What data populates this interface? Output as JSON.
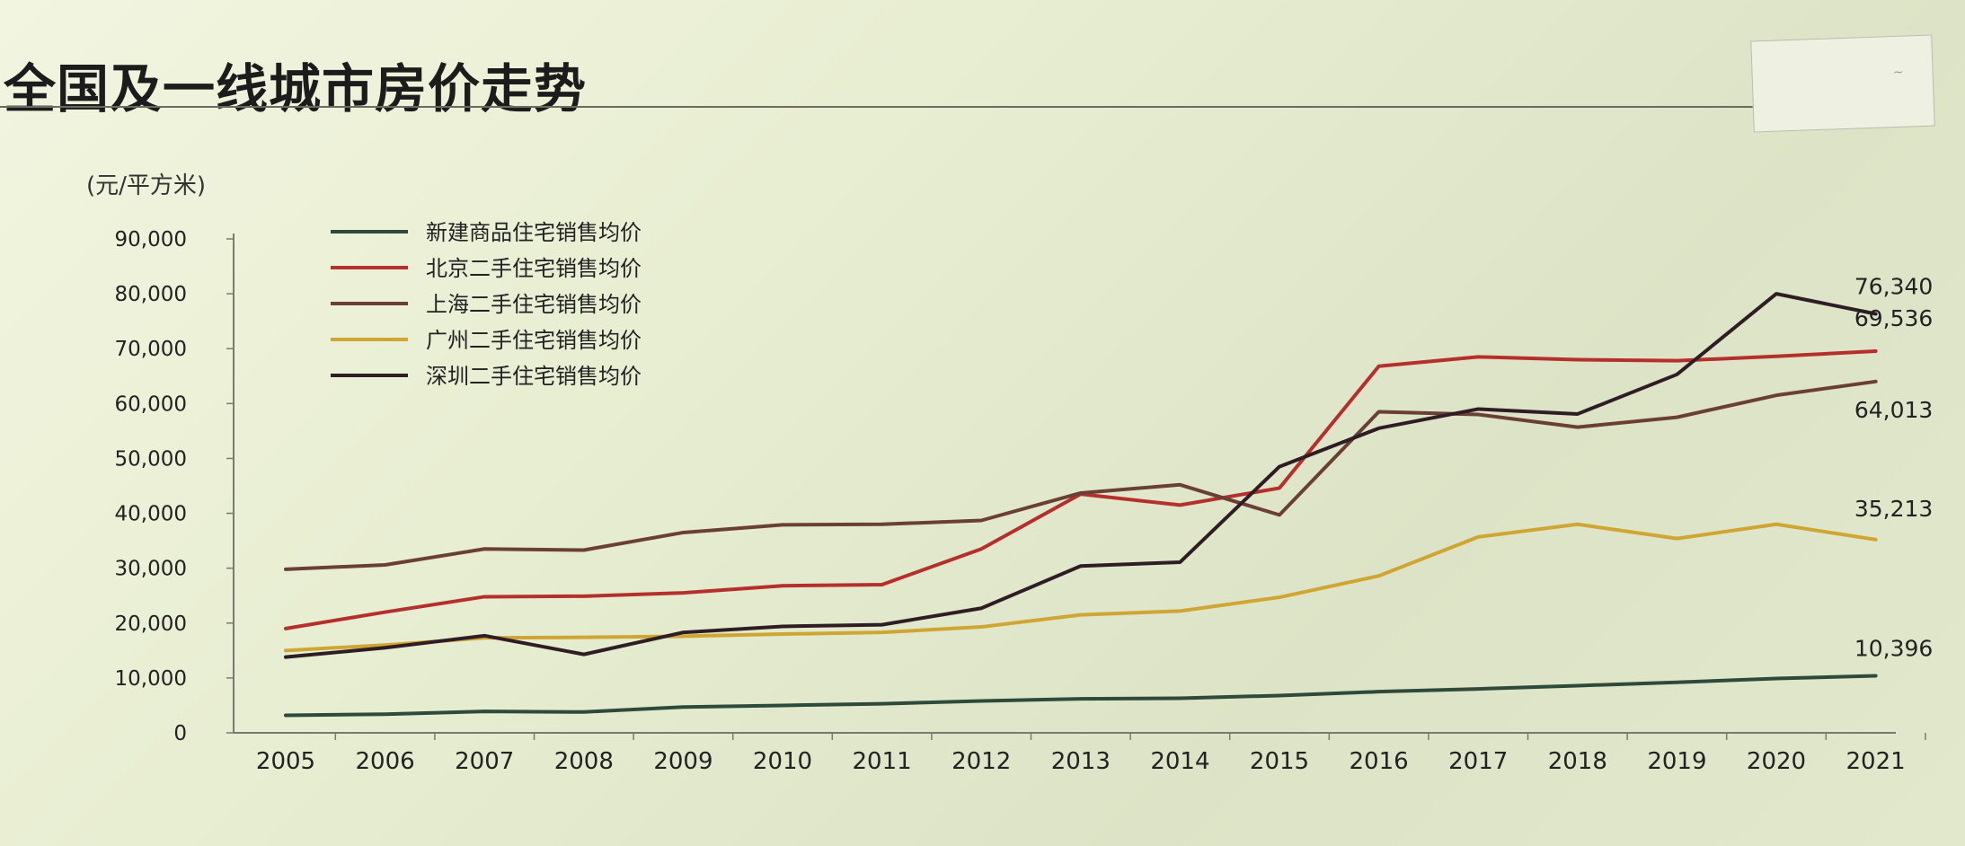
{
  "page": {
    "title": "全国及一线城市房价走势",
    "unit_label": "(元/平方米)"
  },
  "chart_data": {
    "type": "line",
    "title": "全国及一线城市房价走势",
    "ylabel": "(元/平方米)",
    "ylim": [
      0,
      90000
    ],
    "yticks": [
      0,
      10000,
      20000,
      30000,
      40000,
      50000,
      60000,
      70000,
      80000,
      90000
    ],
    "ytick_labels": [
      "0",
      "10,000",
      "20,000",
      "30,000",
      "40,000",
      "50,000",
      "60,000",
      "70,000",
      "80,000",
      "90,000"
    ],
    "categories": [
      "2005",
      "2006",
      "2007",
      "2008",
      "2009",
      "2010",
      "2011",
      "2012",
      "2013",
      "2014",
      "2015",
      "2016",
      "2017",
      "2018",
      "2019",
      "2020",
      "2021"
    ],
    "legend_position": "top-left",
    "grid": false,
    "series": [
      {
        "name": "新建商品住宅销售均价",
        "color": "#2f4a3a",
        "values": [
          3200,
          3400,
          3900,
          3800,
          4700,
          5000,
          5300,
          5800,
          6200,
          6300,
          6800,
          7500,
          8000,
          8600,
          9200,
          9900,
          10396
        ]
      },
      {
        "name": "北京二手住宅销售均价",
        "color": "#b5302d",
        "values": [
          19000,
          22000,
          24800,
          24900,
          25500,
          26800,
          27000,
          33500,
          43500,
          41500,
          44600,
          66800,
          68500,
          68000,
          67800,
          68600,
          69536
        ]
      },
      {
        "name": "上海二手住宅销售均价",
        "color": "#6a3f35",
        "values": [
          29800,
          30600,
          33500,
          33300,
          36500,
          37900,
          38000,
          38700,
          43700,
          45200,
          39700,
          58500,
          58000,
          55700,
          57500,
          61500,
          64013
        ]
      },
      {
        "name": "广州二手住宅销售均价",
        "color": "#cfa632",
        "values": [
          15000,
          16000,
          17300,
          17400,
          17600,
          18000,
          18300,
          19300,
          21500,
          22200,
          24700,
          28600,
          35700,
          38000,
          35400,
          38000,
          35213
        ]
      },
      {
        "name": "深圳二手住宅销售均价",
        "color": "#2e1d24",
        "values": [
          13800,
          15500,
          17700,
          14300,
          18300,
          19400,
          19700,
          22700,
          30400,
          31100,
          48500,
          55500,
          59000,
          58100,
          65300,
          80000,
          76340
        ]
      }
    ],
    "annotations": [
      {
        "text": "76,340",
        "series": "深圳二手住宅销售均价"
      },
      {
        "text": "69,536",
        "series": "北京二手住宅销售均价"
      },
      {
        "text": "64,013",
        "series": "上海二手住宅销售均价"
      },
      {
        "text": "35,213",
        "series": "广州二手住宅销售均价"
      },
      {
        "text": "10,396",
        "series": "新建商品住宅销售均价"
      }
    ]
  }
}
